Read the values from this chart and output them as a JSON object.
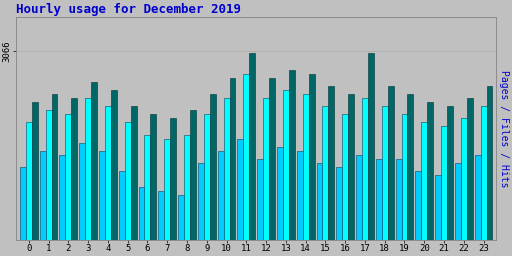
{
  "title": "Hourly usage for December 2019",
  "title_color": "#0000cc",
  "title_fontsize": 9,
  "ylabel_right": "Pages / Files / Hits",
  "hours": [
    0,
    1,
    2,
    3,
    4,
    5,
    6,
    7,
    8,
    9,
    10,
    11,
    12,
    13,
    14,
    15,
    16,
    17,
    18,
    19,
    20,
    21,
    22,
    23
  ],
  "pages": [
    2780,
    2820,
    2810,
    2840,
    2820,
    2770,
    2730,
    2720,
    2710,
    2790,
    2820,
    2850,
    2800,
    2830,
    2820,
    2790,
    2780,
    2810,
    2800,
    2800,
    2770,
    2760,
    2790,
    2810
  ],
  "files": [
    2890,
    2920,
    2910,
    2950,
    2930,
    2890,
    2860,
    2850,
    2860,
    2910,
    2950,
    3010,
    2950,
    2970,
    2960,
    2930,
    2910,
    2950,
    2930,
    2910,
    2890,
    2880,
    2900,
    2930
  ],
  "hits": [
    2940,
    2960,
    2950,
    2990,
    2970,
    2930,
    2910,
    2900,
    2920,
    2960,
    3000,
    3060,
    3000,
    3020,
    3010,
    2980,
    2960,
    3060,
    2980,
    2960,
    2940,
    2930,
    2950,
    2980
  ],
  "color_pages": "#00ccff",
  "color_files": "#00ffff",
  "color_hits": "#006666",
  "bg_color": "#c0c0c0",
  "plot_bg_color": "#c0c0c0",
  "ylim_min": 2600,
  "ylim_max": 3150,
  "ytick_val": 3066,
  "ytick_label": "3066",
  "bar_width": 0.3
}
